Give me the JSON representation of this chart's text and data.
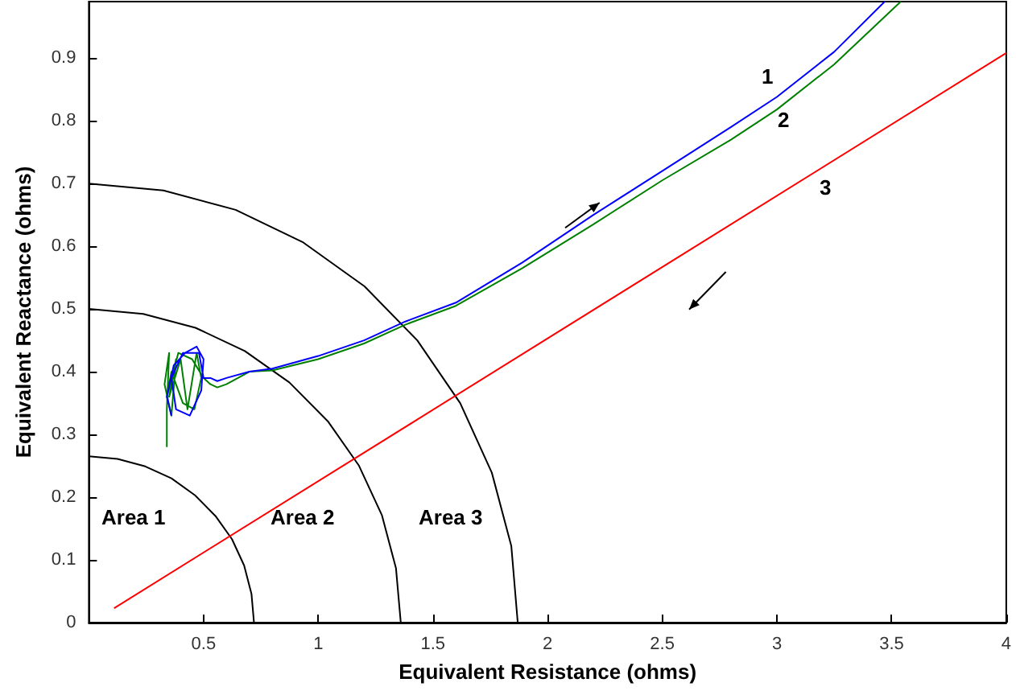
{
  "chart_data": {
    "type": "line",
    "xlabel": "Equivalent Resistance (ohms)",
    "ylabel": "Equivalent Reactance (ohms)",
    "xlim": [
      0,
      4
    ],
    "ylim": [
      0,
      0.99
    ],
    "xticks": [
      0.5,
      1,
      1.5,
      2,
      2.5,
      3,
      3.5,
      4
    ],
    "yticks": [
      0,
      0.1,
      0.2,
      0.3,
      0.4,
      0.5,
      0.6,
      0.7,
      0.8,
      0.9
    ],
    "grid": false,
    "marker": "none",
    "line_style": "solid",
    "series": [
      {
        "color": "#000000",
        "x": [
          0.72,
          0.709,
          0.677,
          0.624,
          0.552,
          0.463,
          0.36,
          0.246,
          0.125,
          0
        ],
        "values": [
          0,
          0.046,
          0.091,
          0.133,
          0.17,
          0.203,
          0.23,
          0.249,
          0.261,
          0.265
        ]
      },
      {
        "color": "#000000",
        "x": [
          1.36,
          1.339,
          1.278,
          1.178,
          1.042,
          0.874,
          0.68,
          0.465,
          0.237,
          0
        ],
        "values": [
          0,
          0.087,
          0.171,
          0.25,
          0.321,
          0.383,
          0.433,
          0.47,
          0.492,
          0.5
        ]
      },
      {
        "color": "#000000",
        "x": [
          1.87,
          1.842,
          1.757,
          1.619,
          1.432,
          1.202,
          0.935,
          0.64,
          0.325,
          0
        ],
        "values": [
          0,
          0.122,
          0.239,
          0.35,
          0.45,
          0.536,
          0.606,
          0.658,
          0.689,
          0.7
        ]
      },
      {
        "name": "2",
        "color": "#008000",
        "x": [
          0.34,
          0.34,
          0.35,
          0.33,
          0.36,
          0.38,
          0.35,
          0.4,
          0.43,
          0.47,
          0.49,
          0.46,
          0.41,
          0.36,
          0.34,
          0.39,
          0.45,
          0.5,
          0.53,
          0.56,
          0.6,
          0.7,
          0.8,
          1.0,
          1.2,
          1.38,
          1.6,
          1.89,
          2.2,
          2.5,
          2.8,
          3.0,
          3.25,
          3.54
        ],
        "values": [
          0.28,
          0.34,
          0.43,
          0.38,
          0.33,
          0.42,
          0.36,
          0.42,
          0.34,
          0.43,
          0.39,
          0.34,
          0.35,
          0.4,
          0.36,
          0.43,
          0.42,
          0.39,
          0.38,
          0.375,
          0.38,
          0.4,
          0.402,
          0.42,
          0.445,
          0.475,
          0.505,
          0.565,
          0.635,
          0.705,
          0.77,
          0.818,
          0.89,
          0.99
        ]
      },
      {
        "name": "1",
        "color": "#0000ff",
        "x": [
          0.36,
          0.34,
          0.37,
          0.42,
          0.47,
          0.5,
          0.49,
          0.44,
          0.38,
          0.36,
          0.41,
          0.48,
          0.5,
          0.53,
          0.56,
          0.6,
          0.7,
          0.8,
          1.0,
          1.2,
          1.38,
          1.6,
          1.89,
          2.2,
          2.5,
          2.8,
          3.0,
          3.25,
          3.47
        ],
        "values": [
          0.33,
          0.36,
          0.41,
          0.43,
          0.44,
          0.42,
          0.37,
          0.33,
          0.34,
          0.39,
          0.43,
          0.43,
          0.39,
          0.39,
          0.385,
          0.39,
          0.4,
          0.405,
          0.425,
          0.45,
          0.48,
          0.51,
          0.574,
          0.65,
          0.72,
          0.79,
          0.838,
          0.91,
          0.99
        ]
      },
      {
        "name": "3",
        "color": "#ff0000",
        "x": [
          0.11,
          4
        ],
        "values": [
          0.023,
          0.908
        ]
      }
    ],
    "annotations": [
      "Area 1",
      "Area 2",
      "Area 3"
    ]
  }
}
